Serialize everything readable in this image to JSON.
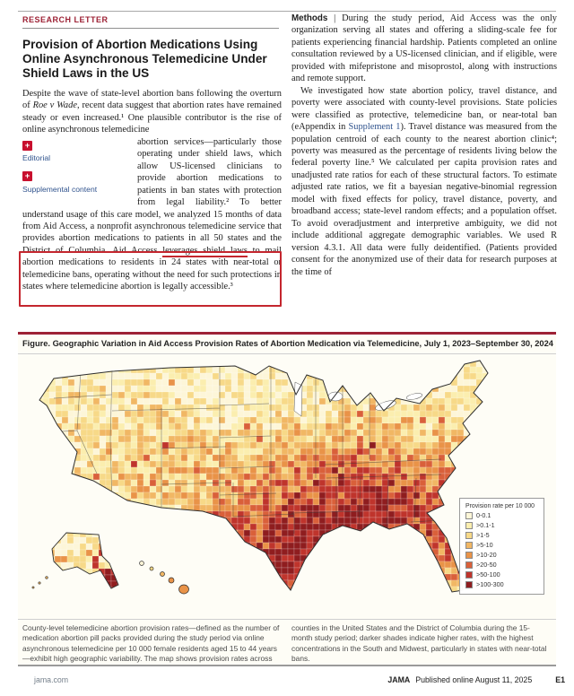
{
  "accent": {
    "jama_red": "#9d2235",
    "highlight_red": "#c4262e",
    "link_blue": "#31548e"
  },
  "icons": {
    "plus": "+"
  },
  "header": {
    "kicker": "RESEARCH LETTER",
    "title": "Provision of Abortion Medications Using Online Asynchronous Telemedicine in the US"
  },
  "page_title": "Provision of Abortion Medications Using Online Asynchronous Telemedicine Under Shield Laws in the US",
  "left_column": {
    "intro_a1": "Despite the wave of state-level abortion bans following the overturn of ",
    "intro_italic": "Roe v Wade",
    "intro_a2": ", recent data suggest that abortion rates have remained steady or even increased.¹ One plausible contributor is the rise of online asynchronous telemedicine",
    "intro_b1": "abortion services—particularly those operating under shield laws, which allow US-licensed clinicians to provide abortion medications to patients in ban states with protection from legal liability.² To better understand usage of this care model, we analyzed 15 months of data from Aid Access, a nonprofit asynchronous telemedicine service that provides abortion medications to patients in all 50 states and the District of Columbia. Aid Access ",
    "intro_underlined": "leverages shield laws",
    "intro_b2": " to mail abortion medications to residents in 24 states with near-total or telemedicine bans, operating without the need for such protections in states where telemedicine abortion is legally accessible.³",
    "links": [
      {
        "icon": "plus-icon",
        "label": "Editorial"
      },
      {
        "icon": "plus-icon",
        "label": "Supplemental content"
      }
    ]
  },
  "right_column": {
    "methods_label": "Methods",
    "methods_p1": " | During the study period, Aid Access was the only organization serving all states and offering a sliding-scale fee for patients experiencing financial hardship. Patients completed an online consultation reviewed by a US-licensed clinician, and if eligible, were provided with mifepristone and misoprostol, along with instructions and remote support.",
    "p2_before_link": "We investigated how state abortion policy, travel distance, and poverty were associated with county-level provisions. State policies were classified as protective, telemedicine ban, or near-total ban (eAppendix in ",
    "p2_link": "Supplement 1",
    "p2_after_link": "). Travel distance was measured from the population centroid of each county to the nearest abortion clinic⁴; poverty was measured as the percentage of residents living below the federal poverty line.⁵ We calculated per capita provision rates and unadjusted rate ratios for each of these structural factors. To estimate adjusted rate ratios, we fit a bayesian negative-binomial regression model with fixed effects for policy, travel distance, poverty, and broadband access; state-level random effects; and a population offset. To avoid overadjustment and interpretive ambiguity, we did not include additional aggregate demographic variables. We used R version 4.3.1. All data were fully deidentified. (Patients provided consent for the anonymized use of their data for research purposes at the time of"
  },
  "figure": {
    "title": "Figure. Geographic Variation in Aid Access Provision Rates of Abortion Medication via Telemedicine, July 1, 2023–September 30, 2024",
    "legend_title": "Provision rate per 10 000",
    "legend": [
      {
        "label": "0-0.1",
        "color": "#fdf6d8"
      },
      {
        "label": ">0.1-1",
        "color": "#fbeeaf"
      },
      {
        "label": ">1-5",
        "color": "#f7d988"
      },
      {
        "label": ">5-10",
        "color": "#f1b764"
      },
      {
        "label": ">10-20",
        "color": "#e99348"
      },
      {
        "label": ">20-50",
        "color": "#d9603a"
      },
      {
        "label": ">50-100",
        "color": "#bf342c"
      },
      {
        "label": ">100-300",
        "color": "#8f1d1f"
      }
    ],
    "caption_left": "County-level telemedicine abortion provision rates—defined as the number of medication abortion pill packs provided during the study period via online asynchronous telemedicine per 10 000 female residents aged 15 to 44 years—exhibit high geographic variability. The map shows provision rates across",
    "caption_right": "counties in the United States and the District of Columbia during the 15-month study period; darker shades indicate higher rates, with the highest concentrations in the South and Midwest, particularly in states with near-total bans."
  },
  "chart_data": {
    "type": "heatmap",
    "subtype": "us-county-choropleth",
    "title": "Geographic Variation in Aid Access Provision Rates of Abortion Medication via Telemedicine, July 1, 2023–September 30, 2024",
    "unit": "Provision rate per 10 000",
    "bins": [
      "0-0.1",
      ">0.1-1",
      ">1-5",
      ">5-10",
      ">10-20",
      ">20-50",
      ">50-100",
      ">100-300"
    ],
    "bin_colors": [
      "#fdf6d8",
      "#fbeeaf",
      "#f7d988",
      "#f1b764",
      "#e99348",
      "#d9603a",
      "#bf342c",
      "#8f1d1f"
    ],
    "legend_position": "right",
    "pattern_summary": "Highest rates (>20-300 per 10 000) concentrated in the South (Texas, Louisiana, Mississippi, Alabama, Georgia, Florida) and parts of the Midwest; lightest rates (0-5) in the northern plains and Pacific Northwest; moderate mixed rates in the Mountain West and Northeast"
  },
  "footer": {
    "site_link": "jama.com",
    "journal": "JAMA",
    "published_text": "Published online August 11, 2025",
    "page_number": "E1"
  }
}
